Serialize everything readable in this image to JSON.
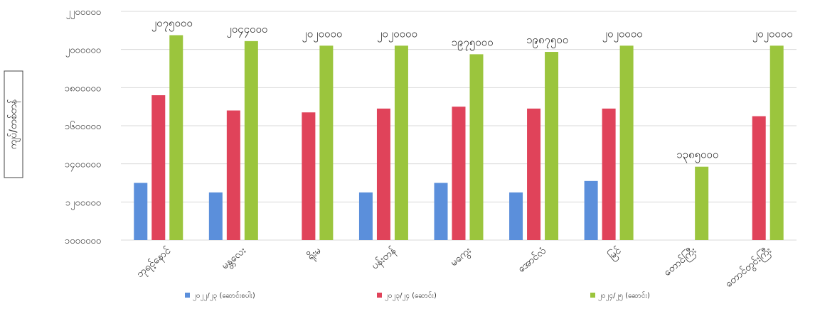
{
  "chart_data": {
    "type": "bar",
    "ylabel": "ကျပ်/တစ်တန်",
    "ylim": [
      1000000,
      2200000
    ],
    "yticks": [
      1000000,
      1200000,
      1400000,
      1600000,
      1800000,
      2000000,
      2200000
    ],
    "ytick_labels": [
      "၁၀၀၀၀၀၀",
      "၁၂၀၀၀၀၀",
      "၁၄၀၀၀၀၀",
      "၁၆၀၀၀၀၀",
      "၁၈၀၀၀၀၀",
      "၂၀၀၀၀၀၀",
      "၂၂၀၀၀၀၀"
    ],
    "grid": true,
    "legend_position": "bottom",
    "categories": [
      "ဘုရင့်နောင်",
      "မန္တလေး",
      "ရိုးမ",
      "ပန်းတန်",
      "မကွေး",
      "အောင်လံ",
      "မြင်",
      "တောင်ကြီး",
      "တောင်တွင်းကြီး"
    ],
    "series": [
      {
        "name": "၂၀၂၂/၂၃ (ဆောင်းစပါး)",
        "color": "#5b8fdb",
        "values": [
          1300000,
          1250000,
          null,
          1250000,
          1300000,
          1250000,
          1310000,
          null,
          null
        ]
      },
      {
        "name": "၂၀၂၃/၂၄ (ဆောင်း)",
        "color": "#e0435a",
        "values": [
          1760000,
          1680000,
          1670000,
          1690000,
          1700000,
          1690000,
          1690000,
          null,
          1650000
        ]
      },
      {
        "name": "၂၀၂၄/၂၅ (ဆောင်း)",
        "color": "#9bc53d",
        "values": [
          2075000,
          2044000,
          2020000,
          2020000,
          1975000,
          1987500,
          2020000,
          1385000,
          2020000
        ]
      }
    ],
    "data_labels": [
      "၂၀၇၅၀၀၀",
      "၂၀၄၄၀၀၀",
      "၂၀၂၀၀၀၀",
      "၂၀၂၀၀၀၀",
      "၁၉၇၅၀၀၀",
      "၁၉၈၇၅၀၀",
      "၂၀၂၀၀၀၀",
      "၁၃၈၅၀၀၀",
      "၂၀၂၀၀၀၀"
    ]
  }
}
